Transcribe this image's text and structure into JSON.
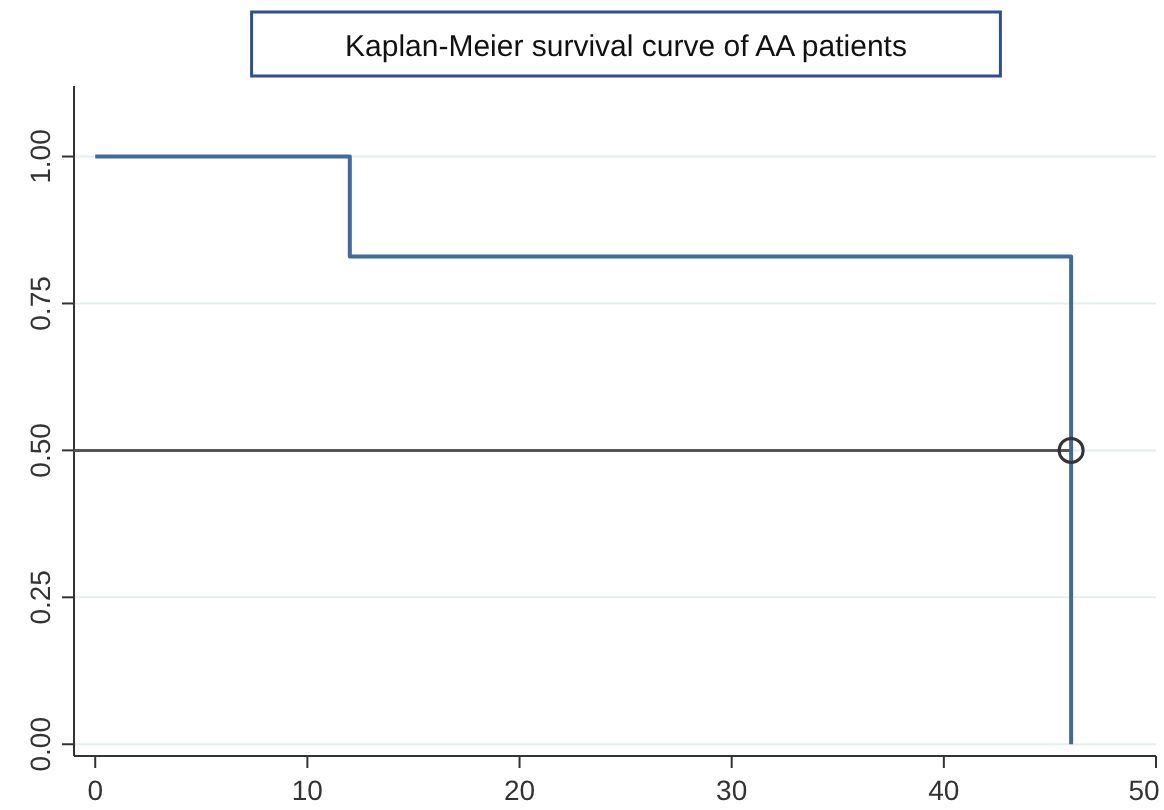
{
  "chart_data": {
    "type": "step",
    "title": "Kaplan-Meier survival curve of AA patients",
    "xlim": [
      -1,
      50
    ],
    "xticks": [
      0,
      10,
      20,
      30,
      40,
      50
    ],
    "ylim": [
      -0.02,
      1.12
    ],
    "yticks": [
      {
        "value": 0,
        "label": "0.00"
      },
      {
        "value": 0.25,
        "label": "0.25"
      },
      {
        "value": 0.5,
        "label": "0.50"
      },
      {
        "value": 0.75,
        "label": "0.75"
      },
      {
        "value": 1,
        "label": "1.00"
      }
    ],
    "grid": "y",
    "series": [
      {
        "type": "line",
        "color": "#555555",
        "x": [
          -1,
          46
        ],
        "values": [
          0.5,
          0.5
        ]
      },
      {
        "color": "#3f6a9a",
        "x": [
          0,
          12,
          46,
          46
        ],
        "values": [
          1,
          0.83,
          0.83,
          0
        ]
      },
      {
        "type": "scatter",
        "marker": "circle",
        "color": "#333333",
        "x": [
          46
        ],
        "values": [
          0.5
        ]
      }
    ]
  }
}
